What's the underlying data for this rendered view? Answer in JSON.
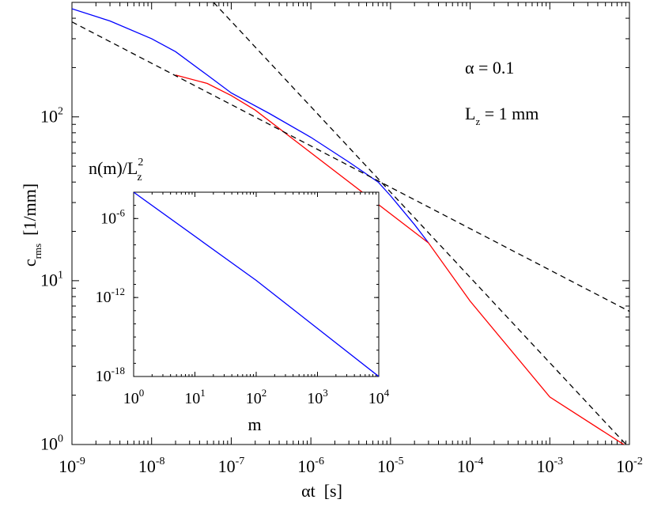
{
  "chart_data": [
    {
      "type": "line",
      "scale": {
        "x": "log",
        "y": "log"
      },
      "xlim": [
        1e-09,
        0.01
      ],
      "ylim": [
        1,
        500
      ],
      "xlabel": "αt  [s]",
      "ylabel": "c",
      "ylabel_sub": "rms",
      "ylabel_unit": "[1/mm]",
      "x_ticks": [
        {
          "value": 1e-09,
          "base": "10",
          "exp": "-9"
        },
        {
          "value": 1e-08,
          "base": "10",
          "exp": "-8"
        },
        {
          "value": 1e-07,
          "base": "10",
          "exp": "-7"
        },
        {
          "value": 1e-06,
          "base": "10",
          "exp": "-6"
        },
        {
          "value": 1e-05,
          "base": "10",
          "exp": "-5"
        },
        {
          "value": 0.0001,
          "base": "10",
          "exp": "-4"
        },
        {
          "value": 0.001,
          "base": "10",
          "exp": "-3"
        },
        {
          "value": 0.01,
          "base": "10",
          "exp": "-2"
        }
      ],
      "y_ticks": [
        {
          "value": 1,
          "base": "10",
          "exp": "0"
        },
        {
          "value": 10,
          "base": "10",
          "exp": "1"
        },
        {
          "value": 100,
          "base": "10",
          "exp": "2"
        }
      ],
      "annotations": [
        {
          "text": "α = 0.1",
          "x": 0.0005,
          "y": 300
        },
        {
          "text": "L",
          "sub": "z",
          "rest": " = 1 mm",
          "x": 0.0005,
          "y": 100
        }
      ],
      "series": [
        {
          "color": "#0000ff",
          "style": "solid",
          "x": [
            1e-09,
            3e-09,
            1e-08,
            2e-08,
            5e-08,
            1e-07,
            3e-07,
            1e-06,
            3e-06,
            7e-06,
            1e-05,
            2e-05,
            3e-05
          ],
          "y": [
            457,
            385,
            300,
            250,
            180,
            140,
            105,
            75,
            53,
            40,
            33,
            22,
            17
          ]
        },
        {
          "color": "#ff0000",
          "style": "solid",
          "x": [
            2e-08,
            5e-08,
            1e-07,
            2e-07,
            3e-05,
            0.0001,
            0.001,
            0.01
          ],
          "y": [
            180,
            160,
            135,
            110,
            17,
            7.5,
            1.95,
            0.95
          ]
        },
        {
          "color": "#000000",
          "style": "dashed",
          "x": [
            1e-09,
            0.01
          ],
          "y": [
            380,
            6.5
          ]
        },
        {
          "color": "#000000",
          "style": "dashed",
          "x": [
            6e-08,
            0.01
          ],
          "y": [
            500,
            0.95
          ]
        }
      ]
    },
    {
      "type": "line",
      "scale": {
        "x": "log",
        "y": "log"
      },
      "xlim": [
        1,
        10000.0
      ],
      "ylim": [
        1e-18,
        0.0001
      ],
      "title": "n(m)/L",
      "title_sub": "z",
      "title_sup": "2",
      "xlabel": "m",
      "x_ticks": [
        {
          "value": 1,
          "base": "10",
          "exp": "0"
        },
        {
          "value": 10,
          "base": "10",
          "exp": "1"
        },
        {
          "value": 100,
          "base": "10",
          "exp": "2"
        },
        {
          "value": 1000,
          "base": "10",
          "exp": "3"
        },
        {
          "value": 10000,
          "base": "10",
          "exp": "4"
        }
      ],
      "y_ticks": [
        {
          "value": 1e-06,
          "base": "10",
          "exp": "-6"
        },
        {
          "value": 1e-12,
          "base": "10",
          "exp": "-12"
        },
        {
          "value": 1e-18,
          "base": "10",
          "exp": "-18"
        }
      ],
      "series": [
        {
          "color": "#0000ff",
          "style": "solid",
          "x": [
            1,
            100,
            10000
          ],
          "y": [
            0.0001,
            2e-11,
            1e-18
          ]
        }
      ]
    }
  ]
}
